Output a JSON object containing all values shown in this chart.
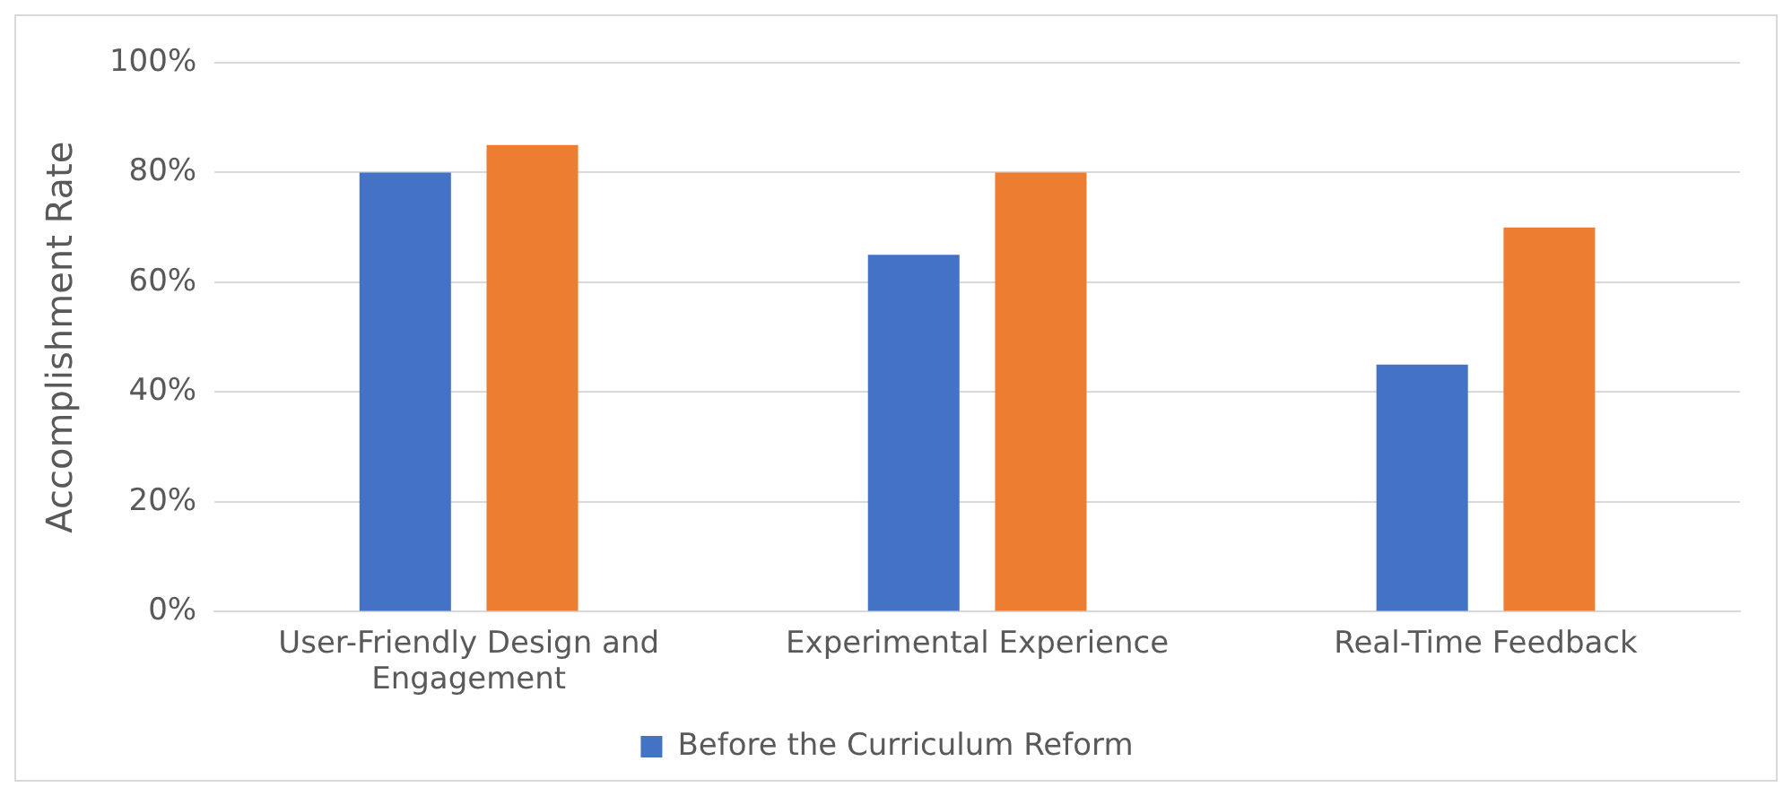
{
  "chart_data": {
    "type": "bar",
    "ylabel": "Accomplishment Rate",
    "categories": [
      "User-Friendly Design and Engagement",
      "Experimental Experience",
      "Real-Time Feedback"
    ],
    "series": [
      {
        "name": "Before the Curriculum Reform",
        "color": "#4472c4",
        "values": [
          80,
          65,
          45
        ]
      },
      {
        "color": "#ed7d31",
        "values": [
          85,
          80,
          70
        ]
      }
    ],
    "ylim": [
      0,
      100
    ],
    "yticks": [
      {
        "value": 0,
        "label": "0%"
      },
      {
        "value": 20,
        "label": "20%"
      },
      {
        "value": 40,
        "label": "40%"
      },
      {
        "value": 60,
        "label": "60%"
      },
      {
        "value": 80,
        "label": "80%"
      },
      {
        "value": 100,
        "label": "100%"
      }
    ],
    "grid": "y",
    "legend": "bottom"
  }
}
